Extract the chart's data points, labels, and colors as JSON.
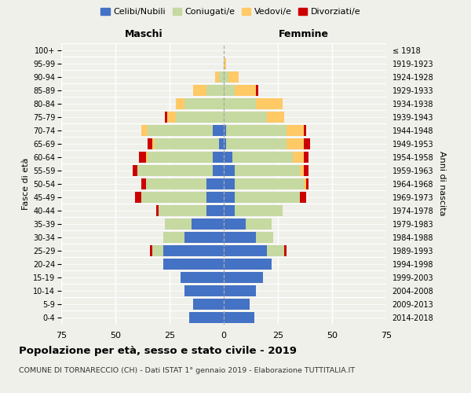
{
  "age_groups": [
    "0-4",
    "5-9",
    "10-14",
    "15-19",
    "20-24",
    "25-29",
    "30-34",
    "35-39",
    "40-44",
    "45-49",
    "50-54",
    "55-59",
    "60-64",
    "65-69",
    "70-74",
    "75-79",
    "80-84",
    "85-89",
    "90-94",
    "95-99",
    "100+"
  ],
  "birth_years": [
    "2014-2018",
    "2009-2013",
    "2004-2008",
    "1999-2003",
    "1994-1998",
    "1989-1993",
    "1984-1988",
    "1979-1983",
    "1974-1978",
    "1969-1973",
    "1964-1968",
    "1959-1963",
    "1954-1958",
    "1949-1953",
    "1944-1948",
    "1939-1943",
    "1934-1938",
    "1929-1933",
    "1924-1928",
    "1919-1923",
    "≤ 1918"
  ],
  "male_celibi": [
    16,
    14,
    18,
    20,
    28,
    28,
    18,
    15,
    8,
    8,
    8,
    5,
    5,
    2,
    5,
    0,
    0,
    0,
    0,
    0,
    0
  ],
  "male_coniugati": [
    0,
    0,
    0,
    0,
    0,
    5,
    10,
    12,
    22,
    30,
    28,
    35,
    30,
    30,
    30,
    22,
    18,
    8,
    2,
    0,
    0
  ],
  "male_vedovi": [
    0,
    0,
    0,
    0,
    0,
    0,
    0,
    0,
    0,
    0,
    0,
    0,
    1,
    1,
    3,
    4,
    4,
    6,
    2,
    0,
    0
  ],
  "male_divorziati": [
    0,
    0,
    0,
    0,
    0,
    1,
    0,
    0,
    1,
    3,
    2,
    2,
    3,
    2,
    0,
    1,
    0,
    0,
    0,
    0,
    0
  ],
  "female_celibi": [
    14,
    12,
    15,
    18,
    22,
    20,
    15,
    10,
    5,
    5,
    5,
    5,
    4,
    1,
    1,
    0,
    0,
    0,
    0,
    0,
    0
  ],
  "female_coniugati": [
    0,
    0,
    0,
    0,
    0,
    8,
    8,
    12,
    22,
    30,
    32,
    30,
    28,
    28,
    28,
    20,
    15,
    5,
    2,
    0,
    0
  ],
  "female_vedovi": [
    0,
    0,
    0,
    0,
    0,
    0,
    0,
    0,
    0,
    0,
    1,
    2,
    5,
    8,
    8,
    8,
    12,
    10,
    5,
    1,
    0
  ],
  "female_divorziati": [
    0,
    0,
    0,
    0,
    0,
    1,
    0,
    0,
    0,
    3,
    1,
    2,
    2,
    3,
    1,
    0,
    0,
    1,
    0,
    0,
    0
  ],
  "color_celibi": "#4472c4",
  "color_coniugati": "#c5d9a0",
  "color_vedovi": "#ffc966",
  "color_divorziati": "#cc0000",
  "bg_color": "#f0f0eb",
  "grid_color": "#cccccc",
  "xlim": 75,
  "title": "Popolazione per età, sesso e stato civile - 2019",
  "subtitle": "COMUNE DI TORNARECCIO (CH) - Dati ISTAT 1° gennaio 2019 - Elaborazione TUTTITALIA.IT",
  "ylabel_left": "Fasce di età",
  "ylabel_right": "Anni di nascita"
}
